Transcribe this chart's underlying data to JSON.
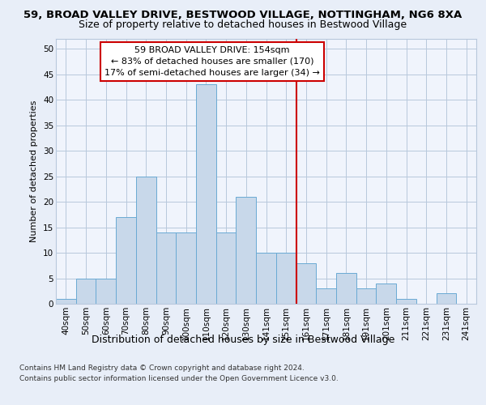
{
  "title_line1": "59, BROAD VALLEY DRIVE, BESTWOOD VILLAGE, NOTTINGHAM, NG6 8XA",
  "title_line2": "Size of property relative to detached houses in Bestwood Village",
  "xlabel": "Distribution of detached houses by size in Bestwood Village",
  "ylabel": "Number of detached properties",
  "categories": [
    "40sqm",
    "50sqm",
    "60sqm",
    "70sqm",
    "80sqm",
    "90sqm",
    "100sqm",
    "110sqm",
    "120sqm",
    "130sqm",
    "141sqm",
    "151sqm",
    "161sqm",
    "171sqm",
    "181sqm",
    "191sqm",
    "201sqm",
    "211sqm",
    "221sqm",
    "231sqm",
    "241sqm"
  ],
  "values": [
    1,
    5,
    5,
    17,
    25,
    14,
    14,
    43,
    14,
    21,
    10,
    10,
    8,
    3,
    6,
    3,
    4,
    1,
    0,
    2,
    0
  ],
  "bar_color": "#c8d8ea",
  "bar_edge_color": "#6aaad4",
  "vline_after_index": 11,
  "annotation_text": "59 BROAD VALLEY DRIVE: 154sqm\n← 83% of detached houses are smaller (170)\n17% of semi-detached houses are larger (34) →",
  "vline_color": "#cc0000",
  "annotation_box_color": "#cc0000",
  "ylim": [
    0,
    52
  ],
  "yticks": [
    0,
    5,
    10,
    15,
    20,
    25,
    30,
    35,
    40,
    45,
    50
  ],
  "footer_line1": "Contains HM Land Registry data © Crown copyright and database right 2024.",
  "footer_line2": "Contains public sector information licensed under the Open Government Licence v3.0.",
  "bg_color": "#e8eef8",
  "plot_bg_color": "#f0f4fc",
  "grid_color": "#b8c8dc",
  "title_fontsize": 9.5,
  "subtitle_fontsize": 9.0,
  "tick_fontsize": 7.5,
  "ylabel_fontsize": 8.0,
  "xlabel_fontsize": 9.0,
  "annot_fontsize": 8.0,
  "footer_fontsize": 6.5
}
